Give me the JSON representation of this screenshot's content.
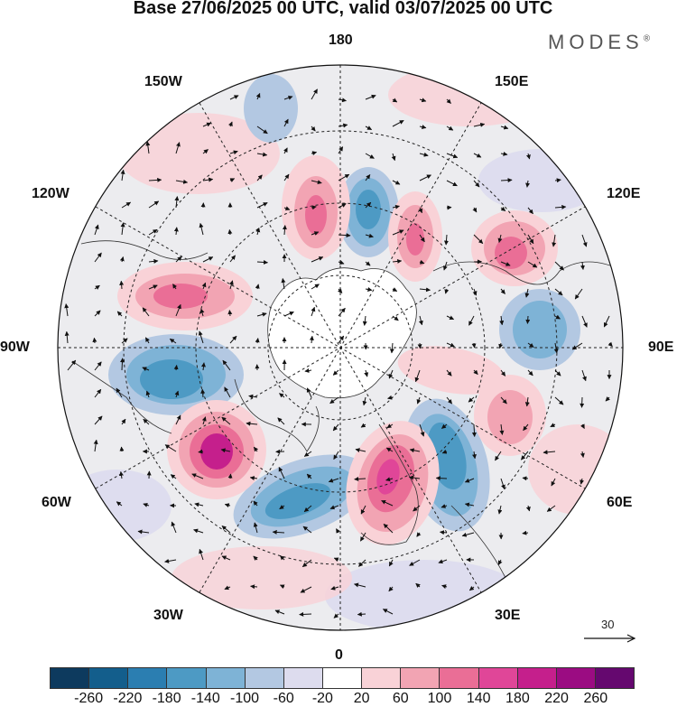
{
  "title": "Base 27/06/2025 00 UTC, valid 03/07/2025 00 UTC",
  "brand": "MODES",
  "brand_mark": "®",
  "longitude_labels": {
    "n180": "180",
    "e150": "150E",
    "e120": "120E",
    "e90": "90E",
    "e60": "60E",
    "e30": "30E",
    "z0": "0",
    "w30": "30W",
    "w60": "60W",
    "w90": "90W",
    "w120": "120W",
    "w150": "150W"
  },
  "reference_vector": {
    "label": "30",
    "icon": "arrow-right-icon"
  },
  "colorbar": {
    "colors": [
      "#0d3a5e",
      "#135e8c",
      "#2b7eb1",
      "#4d9ac4",
      "#7eb3d6",
      "#b3c8e2",
      "#dddcee",
      "#ffffff",
      "#f9d2d7",
      "#f2a4b3",
      "#ea6e96",
      "#e04698",
      "#c51f8c",
      "#9b0c82",
      "#65086f"
    ],
    "tick_labels": [
      "-260",
      "-220",
      "-180",
      "-140",
      "-100",
      "-60",
      "-20",
      "20",
      "60",
      "100",
      "140",
      "180",
      "220",
      "260"
    ]
  }
}
